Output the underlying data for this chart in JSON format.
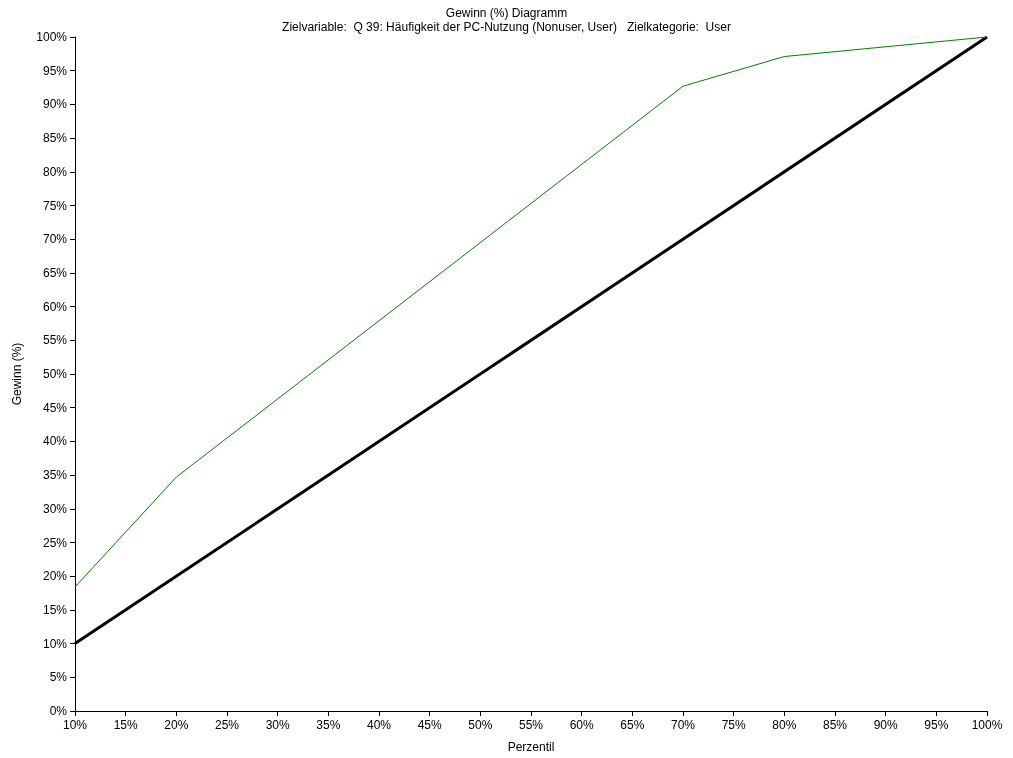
{
  "chart_data": {
    "type": "line",
    "title": "Gewinn (%) Diagramm",
    "subtitle": "Zielvariable:  Q 39: Häufigkeit der PC-Nutzung (Nonuser, User)   Zielkategorie:  User",
    "xlabel": "Perzentil",
    "ylabel": "Gewinn (%)",
    "series": [
      {
        "color": "#008000",
        "x": [
          10,
          20,
          70,
          80,
          100
        ],
        "values": [
          18.4,
          34.7,
          92.7,
          97.1,
          100
        ]
      },
      {
        "color": "#000000",
        "x": [
          10,
          100
        ],
        "values": [
          10,
          100
        ]
      }
    ],
    "xlim": [
      10,
      100
    ],
    "ylim": [
      0,
      100
    ],
    "xticks": [
      {
        "value": 10,
        "label": "10%"
      },
      {
        "value": 15,
        "label": "15%"
      },
      {
        "value": 20,
        "label": "20%"
      },
      {
        "value": 25,
        "label": "25%"
      },
      {
        "value": 30,
        "label": "30%"
      },
      {
        "value": 35,
        "label": "35%"
      },
      {
        "value": 40,
        "label": "40%"
      },
      {
        "value": 45,
        "label": "45%"
      },
      {
        "value": 50,
        "label": "50%"
      },
      {
        "value": 55,
        "label": "55%"
      },
      {
        "value": 60,
        "label": "60%"
      },
      {
        "value": 65,
        "label": "65%"
      },
      {
        "value": 70,
        "label": "70%"
      },
      {
        "value": 75,
        "label": "75%"
      },
      {
        "value": 80,
        "label": "80%"
      },
      {
        "value": 85,
        "label": "85%"
      },
      {
        "value": 90,
        "label": "90%"
      },
      {
        "value": 95,
        "label": "95%"
      },
      {
        "value": 100,
        "label": "100%"
      }
    ],
    "yticks": [
      {
        "value": 0,
        "label": "0%"
      },
      {
        "value": 5,
        "label": "5%"
      },
      {
        "value": 10,
        "label": "10%"
      },
      {
        "value": 15,
        "label": "15%"
      },
      {
        "value": 20,
        "label": "20%"
      },
      {
        "value": 25,
        "label": "25%"
      },
      {
        "value": 30,
        "label": "30%"
      },
      {
        "value": 35,
        "label": "35%"
      },
      {
        "value": 40,
        "label": "40%"
      },
      {
        "value": 45,
        "label": "45%"
      },
      {
        "value": 50,
        "label": "50%"
      },
      {
        "value": 55,
        "label": "55%"
      },
      {
        "value": 60,
        "label": "60%"
      },
      {
        "value": 65,
        "label": "65%"
      },
      {
        "value": 70,
        "label": "70%"
      },
      {
        "value": 75,
        "label": "75%"
      },
      {
        "value": 80,
        "label": "80%"
      },
      {
        "value": 85,
        "label": "85%"
      },
      {
        "value": 90,
        "label": "90%"
      },
      {
        "value": 95,
        "label": "95%"
      },
      {
        "value": 100,
        "label": "100%"
      }
    ],
    "marker": "none",
    "line_style": "solid"
  }
}
